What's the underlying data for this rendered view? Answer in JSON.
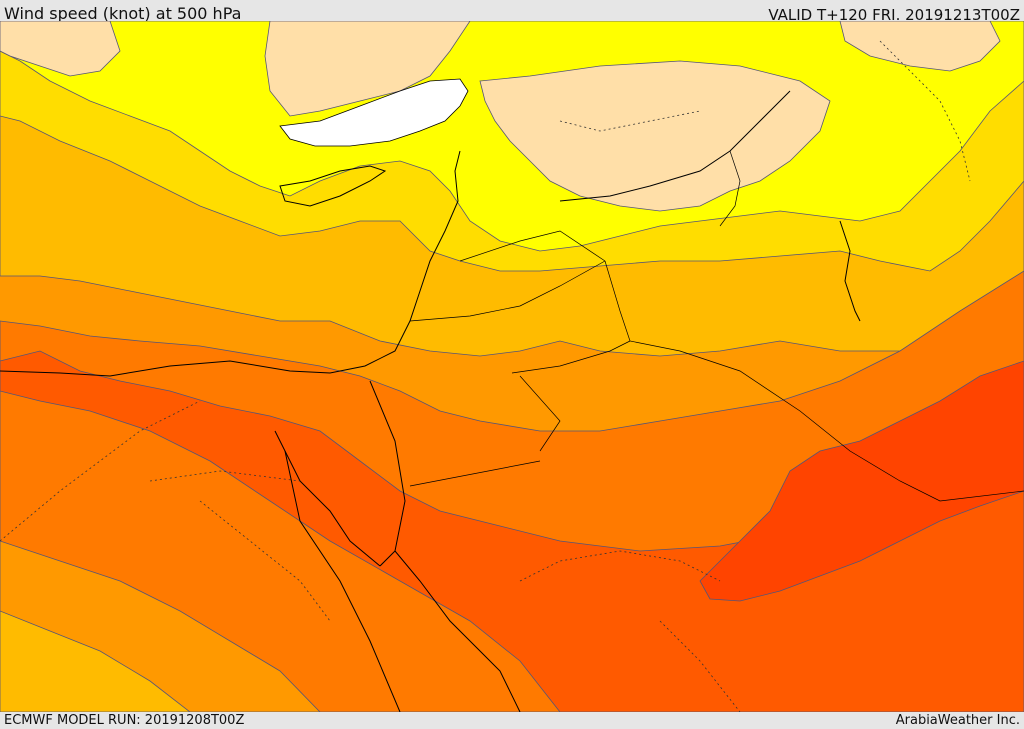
{
  "header": {
    "title": "Wind speed (knot) at 500 hPa",
    "valid": "VALID T+120 FRI. 20191213T00Z"
  },
  "footer": {
    "model_run": "ECMWF MODEL RUN: 20191208T00Z",
    "credit": "ArabiaWeather Inc."
  },
  "colors": {
    "sea": "#ffffff",
    "band_1": "#ffdfa8",
    "band_2": "#ffff00",
    "band_3": "#ffdd00",
    "band_4": "#ffbb00",
    "band_5": "#ff9900",
    "band_6": "#ff7a00",
    "band_7": "#ff5a00",
    "band_8": "#ff4400",
    "coast": "#000000",
    "contour": "#555577"
  }
}
